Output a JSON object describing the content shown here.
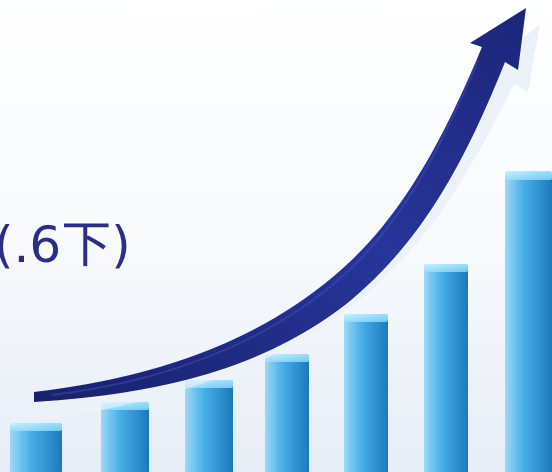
{
  "caption": {
    "text": "(.6下)"
  },
  "graphic": {
    "bar_count": 7,
    "bar_heights_relative": [
      0.12,
      0.23,
      0.35,
      0.48,
      0.62,
      0.77,
      1.0
    ],
    "colors": {
      "background_top": "#ffffff",
      "background_bottom": "#e7edf6",
      "bar_light": "#7dcaf1",
      "bar_mid": "#3aa4e1",
      "bar_dark": "#1f7fc4",
      "arrow": "#23318f",
      "arrow_shadow": "#c7d3e4",
      "caption": "#2a2f86"
    },
    "arrow_icon": "upward-curved-arrow-icon"
  }
}
